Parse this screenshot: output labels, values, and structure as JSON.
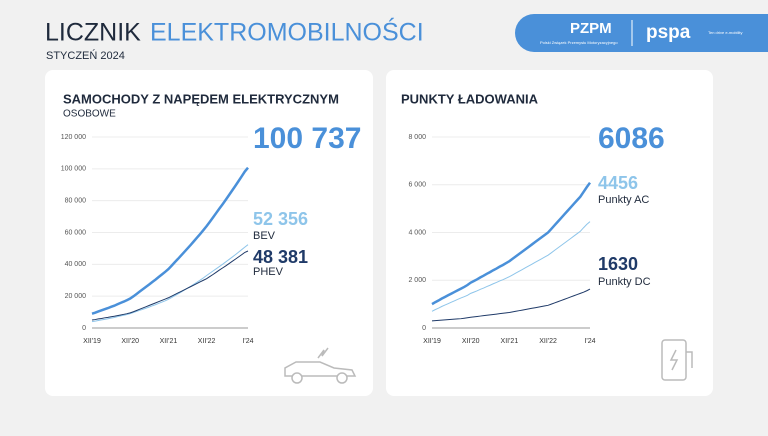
{
  "header": {
    "title_dark": "LICZNIK",
    "title_blue": "ELEKTROMOBILNOŚCI",
    "subtitle": "STYCZEŃ 2024",
    "logo_pzpm": "PZPM",
    "logo_pzpm_sub": "Polski Związek Przemysłu Motoryzacyjnego",
    "logo_pspa": "pspa",
    "logo_pspa_sub": "Ten drive e-mobility"
  },
  "chart_data": [
    {
      "type": "line",
      "title": "SAMOCHODY Z NAPĘDEM ELEKTRYCZNYM",
      "subtitle": "OSOBOWE",
      "grid": true,
      "categories": [
        "XII'19",
        null,
        null,
        null,
        null,
        null,
        null,
        null,
        null,
        null,
        null,
        null,
        "XII'20",
        null,
        null,
        null,
        null,
        null,
        null,
        null,
        null,
        null,
        null,
        null,
        "XII'21",
        null,
        null,
        null,
        null,
        null,
        null,
        null,
        null,
        null,
        null,
        null,
        "XII'22",
        null,
        null,
        null,
        null,
        null,
        null,
        null,
        null,
        null,
        null,
        null,
        null,
        "I'24"
      ],
      "ylim": [
        0,
        120000
      ],
      "yticks": [
        0,
        {
          "value": 20000,
          "label": "20 000"
        },
        {
          "value": 40000,
          "label": "40 000"
        },
        {
          "value": 60000,
          "label": "60 000"
        },
        {
          "value": 80000,
          "label": "80 000"
        },
        {
          "value": 100000,
          "label": "100 000"
        },
        {
          "value": 120000,
          "label": "120 000"
        }
      ],
      "series": [
        {
          "color": "#4a90d9",
          "end_label": "100 737",
          "values": [
            9000,
            9600,
            10400,
            11100,
            11800,
            12500,
            13300,
            14000,
            14900,
            15800,
            16600,
            17500,
            18500,
            19900,
            21400,
            22900,
            24400,
            25900,
            27400,
            29000,
            30500,
            32100,
            33700,
            35300,
            37000,
            39100,
            41300,
            43400,
            45600,
            47800,
            50000,
            52200,
            54500,
            56800,
            59100,
            61500,
            64000,
            66700,
            69400,
            72200,
            75000,
            77700,
            80500,
            83400,
            86300,
            89200,
            92200,
            95200,
            98300,
            100737
          ]
        },
        {
          "name": "BEV",
          "color": "#8ec5ea",
          "end_label": "52 356",
          "values": [
            4000,
            4300,
            4700,
            5100,
            5400,
            5800,
            6200,
            6600,
            7100,
            7600,
            8000,
            8500,
            9000,
            9700,
            10400,
            11100,
            11800,
            12500,
            13200,
            14000,
            14700,
            15500,
            16300,
            17100,
            18000,
            19100,
            20300,
            21400,
            22600,
            23800,
            25000,
            26200,
            27500,
            28800,
            30100,
            31500,
            33000,
            34400,
            35800,
            37200,
            38600,
            40000,
            41500,
            43000,
            44500,
            46000,
            47600,
            49200,
            50800,
            52356
          ]
        },
        {
          "name": "PHEV",
          "color": "#1f3a68",
          "end_label": "48 381",
          "values": [
            5000,
            5300,
            5700,
            6000,
            6400,
            6700,
            7100,
            7400,
            7800,
            8200,
            8600,
            9000,
            9500,
            10200,
            11000,
            11800,
            12600,
            13400,
            14200,
            15000,
            15800,
            16600,
            17400,
            18200,
            19000,
            20000,
            21000,
            22000,
            23000,
            24000,
            25000,
            26000,
            27000,
            28000,
            29000,
            30000,
            31000,
            32300,
            33600,
            35000,
            36400,
            37700,
            39000,
            40400,
            41800,
            43200,
            44600,
            46000,
            47500,
            48381
          ]
        }
      ]
    },
    {
      "type": "line",
      "title": "PUNKTY ŁADOWANIA",
      "grid": true,
      "categories": [
        "XII'19",
        null,
        null,
        null,
        null,
        null,
        null,
        null,
        null,
        null,
        null,
        null,
        "XII'20",
        null,
        null,
        null,
        null,
        null,
        null,
        null,
        null,
        null,
        null,
        null,
        "XII'21",
        null,
        null,
        null,
        null,
        null,
        null,
        null,
        null,
        null,
        null,
        null,
        "XII'22",
        null,
        null,
        null,
        null,
        null,
        null,
        null,
        null,
        null,
        null,
        null,
        null,
        "I'24"
      ],
      "ylim": [
        0,
        8000
      ],
      "yticks": [
        0,
        {
          "value": 2000,
          "label": "2 000"
        },
        {
          "value": 4000,
          "label": "4 000"
        },
        {
          "value": 6000,
          "label": "6 000"
        },
        {
          "value": 8000,
          "label": "8 000"
        }
      ],
      "series": [
        {
          "color": "#4a90d9",
          "end_label": "6086",
          "values": [
            1000,
            1080,
            1150,
            1230,
            1300,
            1370,
            1440,
            1510,
            1580,
            1650,
            1720,
            1800,
            1900,
            1970,
            2040,
            2120,
            2190,
            2270,
            2340,
            2420,
            2490,
            2570,
            2640,
            2720,
            2800,
            2900,
            3000,
            3100,
            3200,
            3300,
            3400,
            3500,
            3600,
            3700,
            3800,
            3900,
            4000,
            4150,
            4300,
            4450,
            4600,
            4750,
            4900,
            5050,
            5200,
            5350,
            5500,
            5700,
            5900,
            6086
          ]
        },
        {
          "name": "Punkty AC",
          "color": "#8ec5ea",
          "end_label": "4456",
          "values": [
            700,
            770,
            830,
            900,
            960,
            1020,
            1080,
            1140,
            1200,
            1260,
            1310,
            1370,
            1450,
            1503,
            1557,
            1620,
            1673,
            1737,
            1790,
            1853,
            1907,
            1970,
            2023,
            2087,
            2150,
            2225,
            2300,
            2375,
            2450,
            2525,
            2600,
            2675,
            2750,
            2825,
            2900,
            2975,
            3050,
            3150,
            3250,
            3350,
            3450,
            3550,
            3650,
            3750,
            3850,
            3950,
            4050,
            4200,
            4340,
            4456
          ]
        },
        {
          "name": "Punkty DC",
          "color": "#1f3a68",
          "end_label": "1630",
          "values": [
            300,
            310,
            320,
            330,
            340,
            350,
            360,
            370,
            380,
            390,
            410,
            430,
            450,
            467,
            483,
            500,
            517,
            533,
            550,
            567,
            583,
            600,
            617,
            633,
            650,
            675,
            700,
            725,
            750,
            775,
            800,
            825,
            850,
            875,
            900,
            925,
            950,
            1000,
            1050,
            1100,
            1150,
            1200,
            1250,
            1300,
            1350,
            1400,
            1450,
            1500,
            1560,
            1630
          ]
        }
      ]
    }
  ]
}
